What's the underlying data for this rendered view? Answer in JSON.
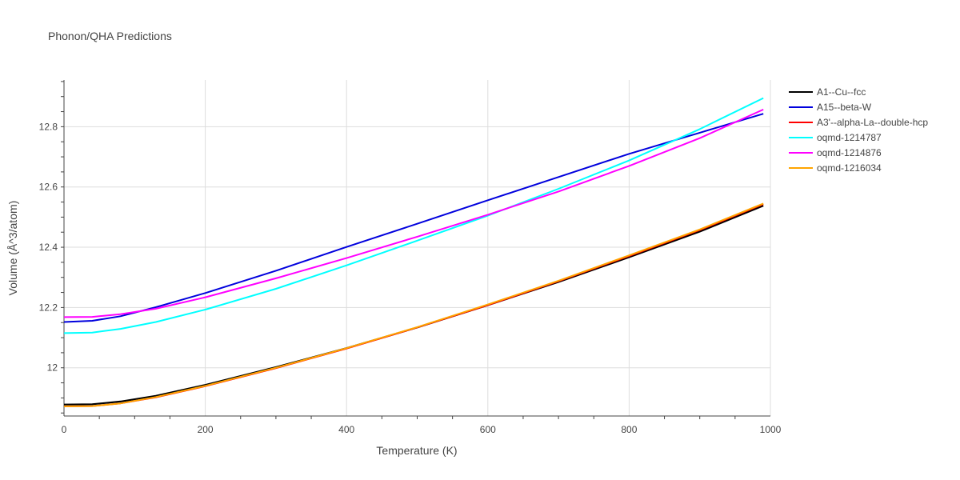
{
  "chart_data": {
    "type": "line",
    "title": "Phonon/QHA Predictions",
    "xlabel": "Temperature (K)",
    "ylabel": "Volume (Å^3/atom)",
    "xlim": [
      0,
      1000
    ],
    "ylim": [
      11.84,
      12.955
    ],
    "xticks": [
      0,
      200,
      400,
      600,
      800,
      1000
    ],
    "yticks": [
      12,
      12.2,
      12.4,
      12.6,
      12.8
    ],
    "ytick_labels": [
      "12",
      "12.2",
      "12.4",
      "12.6",
      "12.8"
    ],
    "grid": true,
    "legend_position": "top-right",
    "series": [
      {
        "name": "A1--Cu--fcc",
        "color": "#000000",
        "width": 2.2,
        "x": [
          0,
          40,
          80,
          130,
          200,
          300,
          400,
          500,
          600,
          700,
          800,
          900,
          990
        ],
        "y": [
          11.878,
          11.879,
          11.888,
          11.907,
          11.943,
          12.002,
          12.065,
          12.134,
          12.208,
          12.285,
          12.367,
          12.452,
          12.538
        ]
      },
      {
        "name": "A15--beta-W",
        "color": "#0000dd",
        "width": 2,
        "x": [
          0,
          40,
          80,
          130,
          200,
          300,
          400,
          500,
          600,
          700,
          800,
          900,
          990
        ],
        "y": [
          12.152,
          12.156,
          12.171,
          12.201,
          12.248,
          12.322,
          12.401,
          12.478,
          12.556,
          12.633,
          12.71,
          12.78,
          12.843
        ]
      },
      {
        "name": "A3'--alpha-La--double-hcp",
        "color": "#ff0000",
        "width": 2,
        "x": [
          0,
          40,
          80,
          130,
          200,
          300,
          400,
          500,
          600,
          700,
          800,
          900,
          990
        ],
        "y": [
          11.872,
          11.873,
          11.882,
          11.902,
          11.939,
          11.999,
          12.064,
          12.134,
          12.208,
          12.287,
          12.371,
          12.457,
          12.543
        ]
      },
      {
        "name": "oqmd-1214787",
        "color": "#00ffff",
        "width": 2,
        "x": [
          0,
          40,
          80,
          130,
          200,
          300,
          400,
          500,
          600,
          700,
          800,
          900,
          990
        ],
        "y": [
          12.115,
          12.117,
          12.129,
          12.152,
          12.193,
          12.262,
          12.34,
          12.422,
          12.505,
          12.594,
          12.688,
          12.792,
          12.895
        ]
      },
      {
        "name": "oqmd-1214876",
        "color": "#ff00ff",
        "width": 2,
        "x": [
          0,
          40,
          80,
          130,
          200,
          300,
          400,
          500,
          600,
          700,
          800,
          900,
          990
        ],
        "y": [
          12.168,
          12.169,
          12.178,
          12.196,
          12.234,
          12.297,
          12.364,
          12.435,
          12.508,
          12.585,
          12.67,
          12.762,
          12.857
        ]
      },
      {
        "name": "oqmd-1216034",
        "color": "#ffa500",
        "width": 2,
        "x": [
          0,
          40,
          80,
          130,
          200,
          300,
          400,
          500,
          600,
          700,
          800,
          900,
          990
        ],
        "y": [
          11.872,
          11.873,
          11.882,
          11.903,
          11.94,
          12.0,
          12.065,
          12.135,
          12.21,
          12.289,
          12.373,
          12.459,
          12.545
        ]
      }
    ]
  }
}
